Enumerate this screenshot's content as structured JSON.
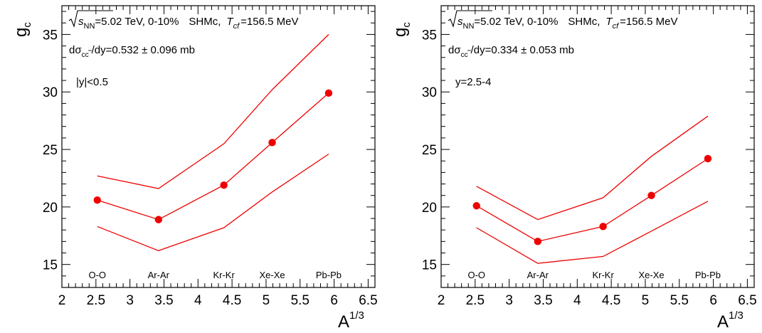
{
  "chart_data": [
    {
      "type": "line",
      "xlabel": "A",
      "xlabel_sup": "1/3",
      "ylabel": "g",
      "ylabel_sub": "c",
      "xlim": [
        2,
        6.6
      ],
      "ylim": [
        13,
        37.5
      ],
      "xticks": [
        "2",
        "2.5",
        "3",
        "3.5",
        "4",
        "4.5",
        "5",
        "5.5",
        "6",
        "6.5"
      ],
      "yticks": [
        "15",
        "20",
        "25",
        "30",
        "35"
      ],
      "systems": [
        {
          "label": "O-O",
          "x": 2.52
        },
        {
          "label": "Ar-Ar",
          "x": 3.42
        },
        {
          "label": "Kr-Kr",
          "x": 4.38
        },
        {
          "label": "Xe-Xe",
          "x": 5.09
        },
        {
          "label": "Pb-Pb",
          "x": 5.92
        }
      ],
      "header": {
        "sqrt_sub": "NN",
        "energy": "=5.02 TeV, 0-10%",
        "model": "SHMc,",
        "t_label": "T",
        "t_sub": "cf",
        "t_value": "=156.5 MeV"
      },
      "xsec": {
        "sub": "cc",
        "value": "/dy=0.532 ± 0.096  mb"
      },
      "rapidity": "|y|<0.5",
      "series": [
        {
          "x": [
            2.52,
            3.42,
            4.38,
            5.09,
            5.92
          ],
          "values": [
            20.6,
            18.9,
            21.9,
            25.6,
            29.9
          ],
          "style": "markers+line"
        },
        {
          "x": [
            2.52,
            3.42,
            4.38,
            5.09,
            5.92
          ],
          "values": [
            22.7,
            21.6,
            25.5,
            30.2,
            35.0
          ],
          "style": "line"
        },
        {
          "x": [
            2.52,
            3.42,
            4.38,
            5.09,
            5.92
          ],
          "values": [
            18.3,
            16.2,
            18.2,
            21.3,
            24.6
          ],
          "style": "line"
        }
      ],
      "color": "#ee0000"
    },
    {
      "type": "line",
      "xlabel": "A",
      "xlabel_sup": "1/3",
      "ylabel": "g",
      "ylabel_sub": "c",
      "xlim": [
        2,
        6.6
      ],
      "ylim": [
        13,
        37.5
      ],
      "xticks": [
        "2",
        "2.5",
        "3",
        "3.5",
        "4",
        "4.5",
        "5",
        "5.5",
        "6",
        "6.5"
      ],
      "yticks": [
        "15",
        "20",
        "25",
        "30",
        "35"
      ],
      "systems": [
        {
          "label": "O-O",
          "x": 2.52
        },
        {
          "label": "Ar-Ar",
          "x": 3.42
        },
        {
          "label": "Kr-Kr",
          "x": 4.38
        },
        {
          "label": "Xe-Xe",
          "x": 5.09
        },
        {
          "label": "Pb-Pb",
          "x": 5.92
        }
      ],
      "header": {
        "sqrt_sub": "NN",
        "energy": "=5.02 TeV, 0-10%",
        "model": "SHMc,",
        "t_label": "T",
        "t_sub": "cf",
        "t_value": "=156.5 MeV"
      },
      "xsec": {
        "sub": "cc",
        "value": "/dy=0.334 ± 0.053  mb"
      },
      "rapidity": "y=2.5-4",
      "series": [
        {
          "x": [
            2.52,
            3.42,
            4.38,
            5.09,
            5.92
          ],
          "values": [
            20.1,
            17.0,
            18.3,
            21.0,
            24.2
          ],
          "style": "markers+line"
        },
        {
          "x": [
            2.52,
            3.42,
            4.38,
            5.09,
            5.92
          ],
          "values": [
            21.8,
            18.9,
            20.8,
            24.4,
            27.9
          ],
          "style": "line"
        },
        {
          "x": [
            2.52,
            3.42,
            4.38,
            5.09,
            5.92
          ],
          "values": [
            18.2,
            15.1,
            15.7,
            17.9,
            20.5
          ],
          "style": "line"
        }
      ],
      "color": "#ee0000"
    }
  ]
}
